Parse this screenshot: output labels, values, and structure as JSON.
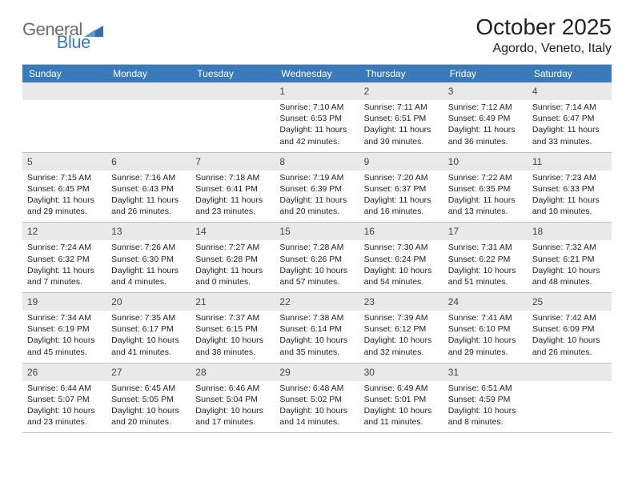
{
  "logo": {
    "text_general": "General",
    "text_blue": "Blue",
    "icon_color": "#2e6fa8"
  },
  "title": "October 2025",
  "location": "Agordo, Veneto, Italy",
  "colors": {
    "header_bg": "#3a7ab8",
    "header_text": "#ffffff",
    "daynum_bg": "#e9e9e9",
    "border": "#bfbfbf",
    "body_text": "#222222"
  },
  "weekdays": [
    "Sunday",
    "Monday",
    "Tuesday",
    "Wednesday",
    "Thursday",
    "Friday",
    "Saturday"
  ],
  "weeks": [
    [
      null,
      null,
      null,
      {
        "n": "1",
        "sr": "Sunrise: 7:10 AM",
        "ss": "Sunset: 6:53 PM",
        "d1": "Daylight: 11 hours",
        "d2": "and 42 minutes."
      },
      {
        "n": "2",
        "sr": "Sunrise: 7:11 AM",
        "ss": "Sunset: 6:51 PM",
        "d1": "Daylight: 11 hours",
        "d2": "and 39 minutes."
      },
      {
        "n": "3",
        "sr": "Sunrise: 7:12 AM",
        "ss": "Sunset: 6:49 PM",
        "d1": "Daylight: 11 hours",
        "d2": "and 36 minutes."
      },
      {
        "n": "4",
        "sr": "Sunrise: 7:14 AM",
        "ss": "Sunset: 6:47 PM",
        "d1": "Daylight: 11 hours",
        "d2": "and 33 minutes."
      }
    ],
    [
      {
        "n": "5",
        "sr": "Sunrise: 7:15 AM",
        "ss": "Sunset: 6:45 PM",
        "d1": "Daylight: 11 hours",
        "d2": "and 29 minutes."
      },
      {
        "n": "6",
        "sr": "Sunrise: 7:16 AM",
        "ss": "Sunset: 6:43 PM",
        "d1": "Daylight: 11 hours",
        "d2": "and 26 minutes."
      },
      {
        "n": "7",
        "sr": "Sunrise: 7:18 AM",
        "ss": "Sunset: 6:41 PM",
        "d1": "Daylight: 11 hours",
        "d2": "and 23 minutes."
      },
      {
        "n": "8",
        "sr": "Sunrise: 7:19 AM",
        "ss": "Sunset: 6:39 PM",
        "d1": "Daylight: 11 hours",
        "d2": "and 20 minutes."
      },
      {
        "n": "9",
        "sr": "Sunrise: 7:20 AM",
        "ss": "Sunset: 6:37 PM",
        "d1": "Daylight: 11 hours",
        "d2": "and 16 minutes."
      },
      {
        "n": "10",
        "sr": "Sunrise: 7:22 AM",
        "ss": "Sunset: 6:35 PM",
        "d1": "Daylight: 11 hours",
        "d2": "and 13 minutes."
      },
      {
        "n": "11",
        "sr": "Sunrise: 7:23 AM",
        "ss": "Sunset: 6:33 PM",
        "d1": "Daylight: 11 hours",
        "d2": "and 10 minutes."
      }
    ],
    [
      {
        "n": "12",
        "sr": "Sunrise: 7:24 AM",
        "ss": "Sunset: 6:32 PM",
        "d1": "Daylight: 11 hours",
        "d2": "and 7 minutes."
      },
      {
        "n": "13",
        "sr": "Sunrise: 7:26 AM",
        "ss": "Sunset: 6:30 PM",
        "d1": "Daylight: 11 hours",
        "d2": "and 4 minutes."
      },
      {
        "n": "14",
        "sr": "Sunrise: 7:27 AM",
        "ss": "Sunset: 6:28 PM",
        "d1": "Daylight: 11 hours",
        "d2": "and 0 minutes."
      },
      {
        "n": "15",
        "sr": "Sunrise: 7:28 AM",
        "ss": "Sunset: 6:26 PM",
        "d1": "Daylight: 10 hours",
        "d2": "and 57 minutes."
      },
      {
        "n": "16",
        "sr": "Sunrise: 7:30 AM",
        "ss": "Sunset: 6:24 PM",
        "d1": "Daylight: 10 hours",
        "d2": "and 54 minutes."
      },
      {
        "n": "17",
        "sr": "Sunrise: 7:31 AM",
        "ss": "Sunset: 6:22 PM",
        "d1": "Daylight: 10 hours",
        "d2": "and 51 minutes."
      },
      {
        "n": "18",
        "sr": "Sunrise: 7:32 AM",
        "ss": "Sunset: 6:21 PM",
        "d1": "Daylight: 10 hours",
        "d2": "and 48 minutes."
      }
    ],
    [
      {
        "n": "19",
        "sr": "Sunrise: 7:34 AM",
        "ss": "Sunset: 6:19 PM",
        "d1": "Daylight: 10 hours",
        "d2": "and 45 minutes."
      },
      {
        "n": "20",
        "sr": "Sunrise: 7:35 AM",
        "ss": "Sunset: 6:17 PM",
        "d1": "Daylight: 10 hours",
        "d2": "and 41 minutes."
      },
      {
        "n": "21",
        "sr": "Sunrise: 7:37 AM",
        "ss": "Sunset: 6:15 PM",
        "d1": "Daylight: 10 hours",
        "d2": "and 38 minutes."
      },
      {
        "n": "22",
        "sr": "Sunrise: 7:38 AM",
        "ss": "Sunset: 6:14 PM",
        "d1": "Daylight: 10 hours",
        "d2": "and 35 minutes."
      },
      {
        "n": "23",
        "sr": "Sunrise: 7:39 AM",
        "ss": "Sunset: 6:12 PM",
        "d1": "Daylight: 10 hours",
        "d2": "and 32 minutes."
      },
      {
        "n": "24",
        "sr": "Sunrise: 7:41 AM",
        "ss": "Sunset: 6:10 PM",
        "d1": "Daylight: 10 hours",
        "d2": "and 29 minutes."
      },
      {
        "n": "25",
        "sr": "Sunrise: 7:42 AM",
        "ss": "Sunset: 6:09 PM",
        "d1": "Daylight: 10 hours",
        "d2": "and 26 minutes."
      }
    ],
    [
      {
        "n": "26",
        "sr": "Sunrise: 6:44 AM",
        "ss": "Sunset: 5:07 PM",
        "d1": "Daylight: 10 hours",
        "d2": "and 23 minutes."
      },
      {
        "n": "27",
        "sr": "Sunrise: 6:45 AM",
        "ss": "Sunset: 5:05 PM",
        "d1": "Daylight: 10 hours",
        "d2": "and 20 minutes."
      },
      {
        "n": "28",
        "sr": "Sunrise: 6:46 AM",
        "ss": "Sunset: 5:04 PM",
        "d1": "Daylight: 10 hours",
        "d2": "and 17 minutes."
      },
      {
        "n": "29",
        "sr": "Sunrise: 6:48 AM",
        "ss": "Sunset: 5:02 PM",
        "d1": "Daylight: 10 hours",
        "d2": "and 14 minutes."
      },
      {
        "n": "30",
        "sr": "Sunrise: 6:49 AM",
        "ss": "Sunset: 5:01 PM",
        "d1": "Daylight: 10 hours",
        "d2": "and 11 minutes."
      },
      {
        "n": "31",
        "sr": "Sunrise: 6:51 AM",
        "ss": "Sunset: 4:59 PM",
        "d1": "Daylight: 10 hours",
        "d2": "and 8 minutes."
      },
      null
    ]
  ]
}
